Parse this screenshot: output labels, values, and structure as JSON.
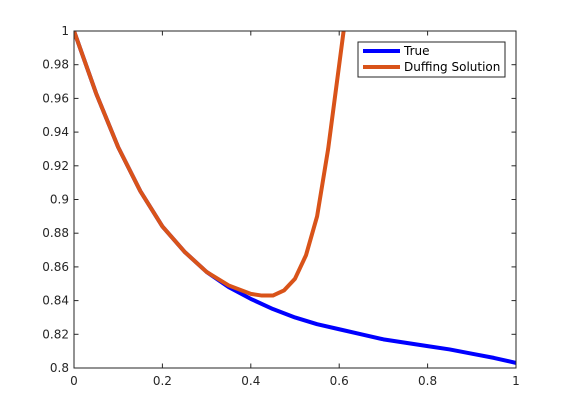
{
  "chart_data": {
    "type": "line",
    "title": "",
    "xlabel": "",
    "ylabel": "",
    "xlim": [
      0,
      1
    ],
    "ylim": [
      0.8,
      1
    ],
    "x_ticks": [
      "0",
      "0.2",
      "0.4",
      "0.6",
      "0.8",
      "1"
    ],
    "y_ticks": [
      "0.8",
      "0.82",
      "0.84",
      "0.86",
      "0.88",
      "0.9",
      "0.92",
      "0.94",
      "0.96",
      "0.98",
      "1"
    ],
    "grid": false,
    "legend": {
      "placement": "top-right",
      "entries": [
        "True",
        "Duffing Solution"
      ]
    },
    "series": [
      {
        "name": "True",
        "color": "#0000ff",
        "x": [
          0,
          0.05,
          0.1,
          0.15,
          0.2,
          0.25,
          0.3,
          0.35,
          0.4,
          0.45,
          0.5,
          0.55,
          0.6,
          0.65,
          0.7,
          0.75,
          0.8,
          0.85,
          0.9,
          0.95,
          1.0
        ],
        "y": [
          1.0,
          0.963,
          0.931,
          0.905,
          0.884,
          0.869,
          0.857,
          0.848,
          0.841,
          0.835,
          0.83,
          0.826,
          0.823,
          0.82,
          0.817,
          0.815,
          0.813,
          0.811,
          0.8085,
          0.806,
          0.803
        ]
      },
      {
        "name": "Duffing Solution",
        "color": "#d95319",
        "x": [
          0,
          0.05,
          0.1,
          0.15,
          0.2,
          0.25,
          0.3,
          0.35,
          0.4,
          0.425,
          0.45,
          0.475,
          0.5,
          0.525,
          0.55,
          0.575,
          0.6,
          0.61
        ],
        "y": [
          1.0,
          0.963,
          0.931,
          0.905,
          0.884,
          0.869,
          0.857,
          0.849,
          0.844,
          0.843,
          0.843,
          0.846,
          0.853,
          0.867,
          0.89,
          0.93,
          0.98,
          1.0
        ]
      }
    ]
  }
}
